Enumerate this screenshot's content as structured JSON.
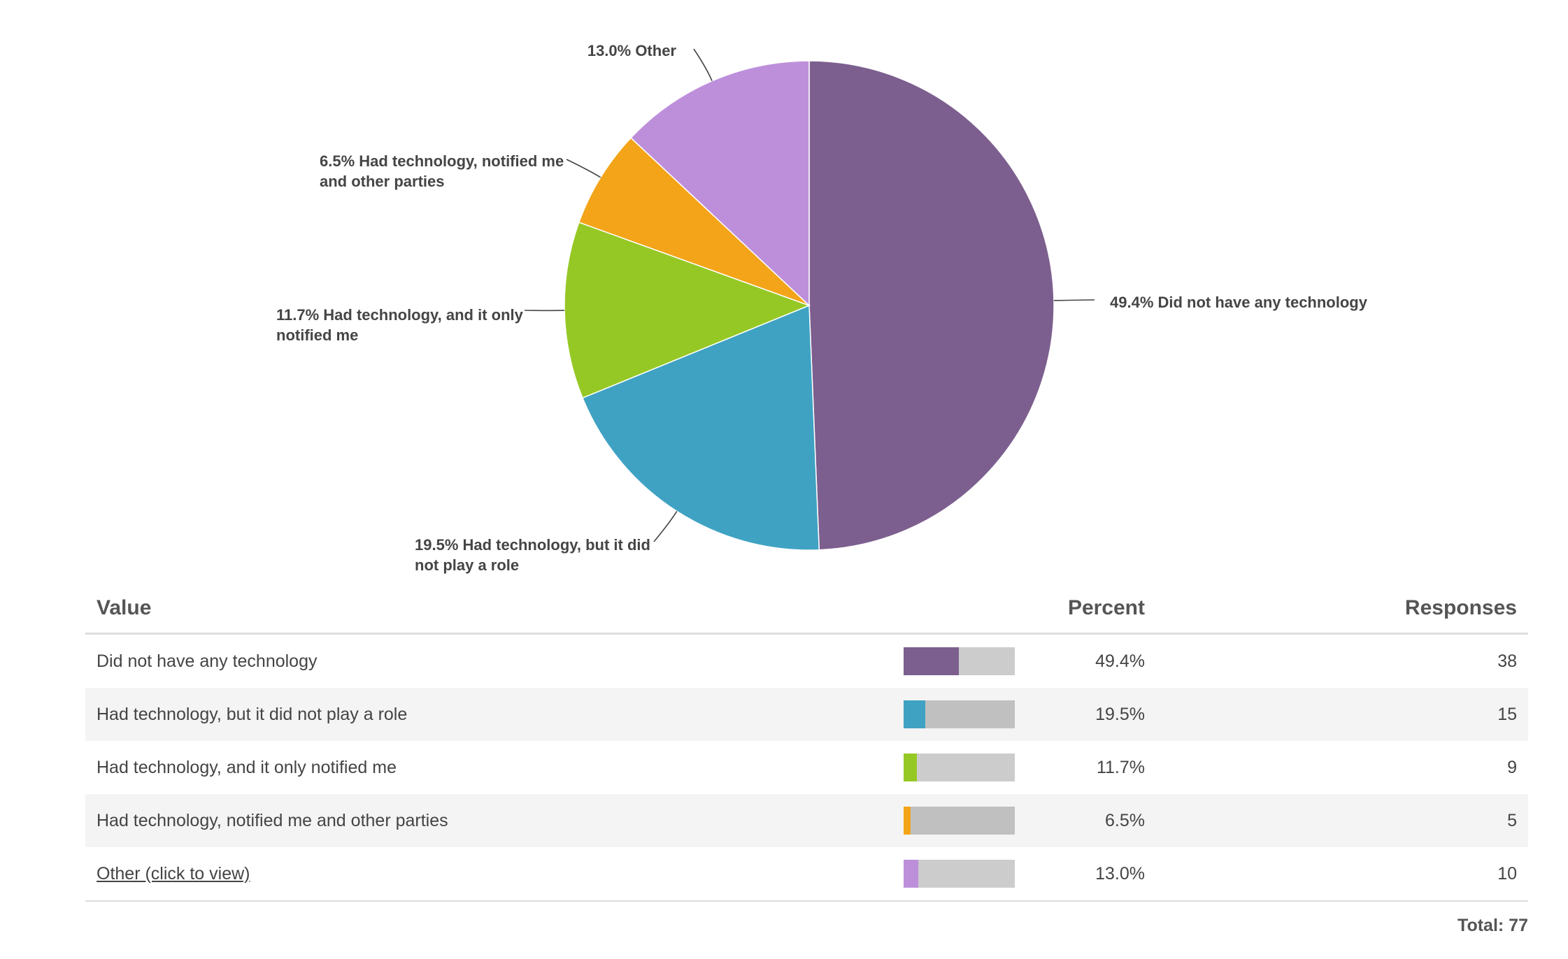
{
  "chart_data": {
    "type": "pie",
    "total_responses": 77,
    "slices": [
      {
        "label": "Did not have any technology",
        "percent": 49.4,
        "responses": 38,
        "color": "#7c5f8e",
        "callout": [
          "49.4% Did not have any technology"
        ]
      },
      {
        "label": "Had technology, but it did not play a role",
        "percent": 19.5,
        "responses": 15,
        "color": "#3fa2c3",
        "callout": [
          "19.5% Had technology, but it did",
          "not play a role"
        ]
      },
      {
        "label": "Had technology, and it only notified me",
        "percent": 11.7,
        "responses": 9,
        "color": "#96c825",
        "callout": [
          "11.7% Had technology, and it only",
          "notified me"
        ]
      },
      {
        "label": "Had technology, notified me and other parties",
        "percent": 6.5,
        "responses": 5,
        "color": "#f4a418",
        "callout": [
          "6.5% Had technology, notified me",
          "and other parties"
        ]
      },
      {
        "label": "Other",
        "percent": 13.0,
        "responses": 10,
        "color": "#bd8fdb",
        "callout": [
          "13.0% Other"
        ]
      }
    ]
  },
  "table": {
    "headers": {
      "value": "Value",
      "percent": "Percent",
      "responses": "Responses"
    },
    "rows": [
      {
        "value": "Did not have any technology",
        "percent": "49.4%",
        "responses": "38",
        "fraction": 0.494,
        "color": "#7c5f8e",
        "bar_track": "#cccccc"
      },
      {
        "value": "Had technology, but it did not play a role",
        "percent": "19.5%",
        "responses": "15",
        "fraction": 0.195,
        "color": "#3fa2c3",
        "bar_track": "#c0c0c0"
      },
      {
        "value": "Had technology, and it only notified me",
        "percent": "11.7%",
        "responses": "9",
        "fraction": 0.117,
        "color": "#96c825",
        "bar_track": "#cccccc"
      },
      {
        "value": "Had technology, notified me and other parties",
        "percent": "6.5%",
        "responses": "5",
        "fraction": 0.065,
        "color": "#f4a418",
        "bar_track": "#c0c0c0"
      },
      {
        "value": "Other (click to view)",
        "percent": "13.0%",
        "responses": "10",
        "fraction": 0.13,
        "color": "#bd8fdb",
        "bar_track": "#cccccc",
        "is_link": true
      }
    ],
    "total": "Total: 77"
  }
}
